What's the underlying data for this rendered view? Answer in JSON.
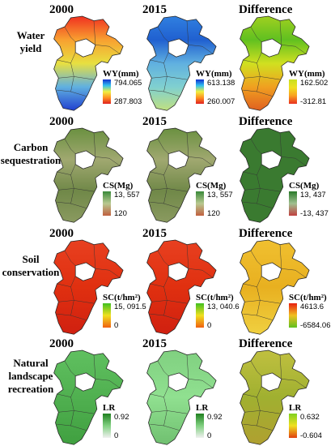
{
  "column_headers": [
    "2000",
    "2015",
    "Difference"
  ],
  "rows": [
    {
      "label": [
        "Water",
        "yield"
      ],
      "panels": [
        {
          "title": "WY(mm)",
          "max": "794.065",
          "min": "287.803"
        },
        {
          "title": "WY(mm)",
          "max": "613.138",
          "min": "260.007"
        },
        {
          "title": "WY(mm)",
          "max": "162.502",
          "min": "-312.81"
        }
      ]
    },
    {
      "label": [
        "Carbon",
        "sequestration"
      ],
      "panels": [
        {
          "title": "CS(Mg)",
          "max": "13, 557",
          "min": "120"
        },
        {
          "title": "CS(Mg)",
          "max": "13, 557",
          "min": "120"
        },
        {
          "title": "CS(Mg)",
          "max": "13, 437",
          "min": "-13, 437"
        }
      ]
    },
    {
      "label": [
        "Soil",
        "conservation"
      ],
      "panels": [
        {
          "title": "SC(t/hm²)",
          "max": "15, 091.5",
          "min": "0"
        },
        {
          "title": "SC(t/hm²)",
          "max": "13, 040.6",
          "min": "0"
        },
        {
          "title": "SC(t/hm²)",
          "max": "4613.6",
          "min": "-6584.06"
        }
      ]
    },
    {
      "label": [
        "Natural",
        "landscape",
        "recreation"
      ],
      "panels": [
        {
          "title": "LR",
          "max": "0.92",
          "min": "0"
        },
        {
          "title": "LR",
          "max": "0.92",
          "min": "0"
        },
        {
          "title": "LR",
          "max": "0.632",
          "min": "-0.604"
        }
      ]
    }
  ]
}
